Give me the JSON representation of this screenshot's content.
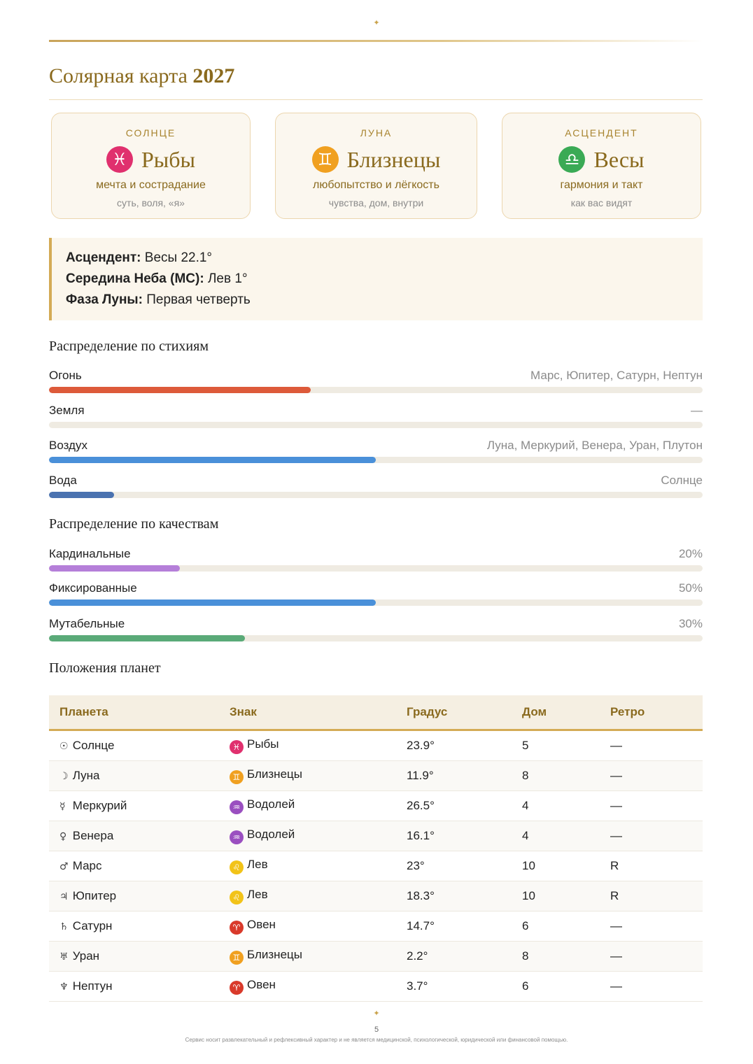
{
  "decor": {
    "star": "✦"
  },
  "title": {
    "text": "Солярная карта ",
    "year": "2027"
  },
  "cards": [
    {
      "label": "СОЛНЦЕ",
      "glyph": "♓",
      "sign": "Рыбы",
      "desc": "мечта и сострадание",
      "sub": "суть, воля, «я»",
      "color": "#e0306e"
    },
    {
      "label": "ЛУНА",
      "glyph": "♊",
      "sign": "Близнецы",
      "desc": "любопытство и лёгкость",
      "sub": "чувства, дом, внутри",
      "color": "#f0a020"
    },
    {
      "label": "АСЦЕНДЕНТ",
      "glyph": "♎",
      "sign": "Весы",
      "desc": "гармония и такт",
      "sub": "как вас видят",
      "color": "#3aaa55"
    }
  ],
  "info": [
    {
      "key": "Асцендент:",
      "value": " Весы 22.1°"
    },
    {
      "key": "Середина Неба (MC):",
      "value": " Лев 1°"
    },
    {
      "key": "Фаза Луны:",
      "value": " Первая четверть"
    }
  ],
  "elements": {
    "title": "Распределение по стихиям",
    "rows": [
      {
        "label": "Огонь",
        "value": "Марс, Юпитер, Сатурн, Нептун",
        "fraction": 0.4,
        "color": "#dd5a3a"
      },
      {
        "label": "Земля",
        "value": "—",
        "fraction": 0,
        "color": "#8b8b8b"
      },
      {
        "label": "Воздух",
        "value": "Луна, Меркурий, Венера, Уран, Плутон",
        "fraction": 0.5,
        "color": "#4a90d9"
      },
      {
        "label": "Вода",
        "value": "Солнце",
        "fraction": 0.1,
        "color": "#4a72b0"
      }
    ]
  },
  "qualities": {
    "title": "Распределение по качествам",
    "rows": [
      {
        "label": "Кардинальные",
        "value": "20%",
        "fraction": 0.2,
        "color": "#b57fd9"
      },
      {
        "label": "Фиксированные",
        "value": "50%",
        "fraction": 0.5,
        "color": "#4a90d9"
      },
      {
        "label": "Мутабельные",
        "value": "30%",
        "fraction": 0.3,
        "color": "#5aaa78"
      }
    ]
  },
  "planets": {
    "title": "Положения планет",
    "headers": [
      "Планета",
      "Знак",
      "Градус",
      "Дом",
      "Ретро"
    ],
    "rows": [
      {
        "pglyph": "☉",
        "planet": "Солнце",
        "sglyph": "♓",
        "sign": "Рыбы",
        "scolor": "#e0306e",
        "degree": "23.9°",
        "house": "5",
        "retro": "—"
      },
      {
        "pglyph": "☽",
        "planet": "Луна",
        "sglyph": "♊",
        "sign": "Близнецы",
        "scolor": "#f0a020",
        "degree": "11.9°",
        "house": "8",
        "retro": "—"
      },
      {
        "pglyph": "☿",
        "planet": "Меркурий",
        "sglyph": "♒",
        "sign": "Водолей",
        "scolor": "#9a4fc0",
        "degree": "26.5°",
        "house": "4",
        "retro": "—"
      },
      {
        "pglyph": "♀",
        "planet": "Венера",
        "sglyph": "♒",
        "sign": "Водолей",
        "scolor": "#9a4fc0",
        "degree": "16.1°",
        "house": "4",
        "retro": "—"
      },
      {
        "pglyph": "♂",
        "planet": "Марс",
        "sglyph": "♌",
        "sign": "Лев",
        "scolor": "#f2c318",
        "degree": "23°",
        "house": "10",
        "retro": "R"
      },
      {
        "pglyph": "♃",
        "planet": "Юпитер",
        "sglyph": "♌",
        "sign": "Лев",
        "scolor": "#f2c318",
        "degree": "18.3°",
        "house": "10",
        "retro": "R"
      },
      {
        "pglyph": "♄",
        "planet": "Сатурн",
        "sglyph": "♈",
        "sign": "Овен",
        "scolor": "#d93a2b",
        "degree": "14.7°",
        "house": "6",
        "retro": "—"
      },
      {
        "pglyph": "♅",
        "planet": "Уран",
        "sglyph": "♊",
        "sign": "Близнецы",
        "scolor": "#f0a020",
        "degree": "2.2°",
        "house": "8",
        "retro": "—"
      },
      {
        "pglyph": "♆",
        "planet": "Нептун",
        "sglyph": "♈",
        "sign": "Овен",
        "scolor": "#d93a2b",
        "degree": "3.7°",
        "house": "6",
        "retro": "—"
      }
    ]
  },
  "footer": {
    "page": "5",
    "note": "Сервис носит развлекательный и рефлексивный характер и не является медицинской, психологической, юридической или финансовой помощью."
  }
}
